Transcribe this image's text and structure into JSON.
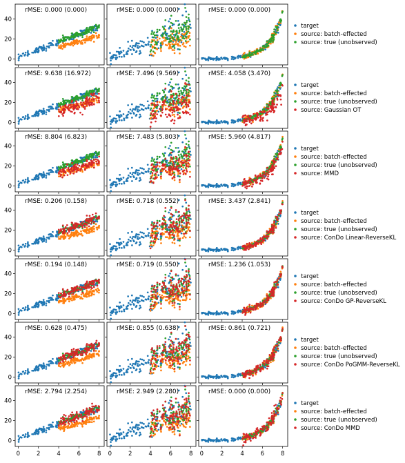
{
  "chart_data": {
    "type": "scatter",
    "layout": "7 rows x 3 columns grid of scatter panels, legend to the right of each row",
    "xlim": [
      -0.3,
      8.5
    ],
    "ylim": [
      -6,
      55
    ],
    "x_ticks": [
      "0",
      "2",
      "4",
      "6",
      "8"
    ],
    "y_ticks": [
      "0",
      "20",
      "40"
    ],
    "x_tick_values": [
      0,
      2,
      4,
      6,
      8
    ],
    "y_tick_values": [
      0,
      20,
      40
    ],
    "colors": {
      "target": "#1f77b4",
      "source_batch": "#ff7f0e",
      "source_true": "#2ca02c",
      "transformed": "#d62728"
    },
    "columns": [
      {
        "shape": "linear",
        "noise": "low",
        "target_x_range": [
          0,
          8
        ],
        "source_x_range": [
          4,
          8
        ]
      },
      {
        "shape": "linear",
        "noise": "high",
        "target_x_range": [
          0,
          8
        ],
        "source_x_range": [
          4,
          8
        ]
      },
      {
        "shape": "exponential",
        "noise": "low",
        "target_x_range": [
          0,
          8
        ],
        "source_x_range": [
          4,
          8
        ]
      }
    ],
    "rows": [
      {
        "rmse": [
          "rMSE: 0.000 (0.000)",
          "rMSE: 0.000 (0.000)",
          "rMSE: 0.000 (0.000)"
        ],
        "legend": [
          "target",
          "source: batch-effected",
          "source: true (unobserved)"
        ],
        "transformed": false
      },
      {
        "rmse": [
          "rMSE: 9.638 (16.972)",
          "rMSE: 7.496 (9.569)",
          "rMSE: 4.058 (3.470)"
        ],
        "legend": [
          "target",
          "source: batch-effected",
          "source: true (unobserved)",
          "source: Gaussian OT"
        ],
        "transformed": true
      },
      {
        "rmse": [
          "rMSE: 8.804  (6.823)",
          "rMSE: 7.483  (5.803)",
          "rMSE: 5.960  (4.817)"
        ],
        "legend": [
          "target",
          "source: batch-effected",
          "source: true (unobserved)",
          "source: MMD"
        ],
        "transformed": true
      },
      {
        "rmse": [
          "rMSE: 0.206 (0.158)",
          "rMSE: 0.718 (0.552)",
          "rMSE: 3.437 (2.841)"
        ],
        "legend": [
          "target",
          "source: batch-effected",
          "source: true (unobserved)",
          "source: ConDo Linear-ReverseKL"
        ],
        "transformed": true
      },
      {
        "rmse": [
          "rMSE: 0.194 (0.148)",
          "rMSE: 0.719 (0.550)",
          "rMSE: 1.236 (1.053)"
        ],
        "legend": [
          "target",
          "source: batch-effected",
          "source: true (unobserved)",
          "source: ConDo GP-ReverseKL"
        ],
        "transformed": true
      },
      {
        "rmse": [
          "rMSE: 0.628 (0.475)",
          "rMSE: 0.855 (0.638)",
          "rMSE: 0.861 (0.721)"
        ],
        "legend": [
          "target",
          "source: batch-effected",
          "source: true (unobserved)",
          "source: ConDo PoGMM-ReverseKL"
        ],
        "transformed": true
      },
      {
        "rmse": [
          "rMSE: 2.794  (2.254)",
          "rMSE: 2.949  (2.280)",
          "rMSE: 0.000  (0.000)"
        ],
        "legend": [
          "target",
          "source: batch-effected",
          "source: true (unobserved)",
          "source: ConDo MMD"
        ],
        "transformed": true
      }
    ]
  }
}
